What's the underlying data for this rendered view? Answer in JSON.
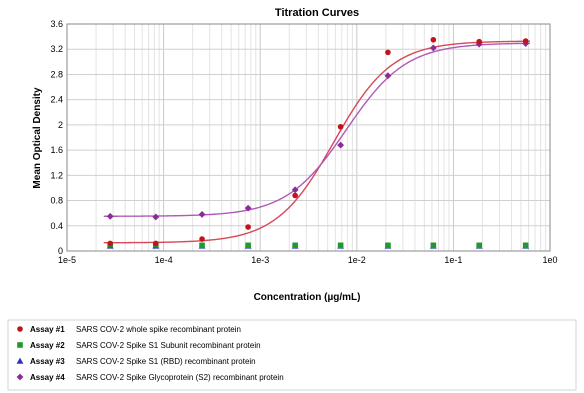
{
  "chart_data": {
    "type": "scatter",
    "title": "Titration Curves",
    "xlabel": "Concentration (µg/mL)",
    "ylabel": "Mean Optical Density",
    "x_scale": "log",
    "xlim": [
      1e-05,
      1
    ],
    "ylim": [
      0,
      3.6
    ],
    "x_ticks": [
      1e-05,
      0.0001,
      0.001,
      0.01,
      0.1,
      1
    ],
    "x_tick_labels": [
      "1e-5",
      "1e-4",
      "1e-3",
      "1e-2",
      "1e-1",
      "1e0"
    ],
    "y_ticks": [
      0,
      0.4,
      0.8,
      1.2,
      1.6,
      2,
      2.4,
      2.8,
      3.2,
      3.6
    ],
    "y_tick_labels": [
      "0",
      "0.4",
      "0.8",
      "1.2",
      "1.6",
      "2",
      "2.4",
      "2.8",
      "3.2",
      "3.6"
    ],
    "grid": true,
    "legend_position": "bottom",
    "x": [
      2.8e-05,
      8.3e-05,
      0.00025,
      0.00075,
      0.0023,
      0.0068,
      0.021,
      0.062,
      0.185,
      0.56
    ],
    "series": [
      {
        "name": "SARS COV-2 whole spike recombinant protein",
        "legend_label": "Assay #1",
        "color": "#c0141a",
        "line_color": "#d7485a",
        "marker": "circle",
        "values": [
          0.12,
          0.12,
          0.19,
          0.38,
          0.88,
          1.97,
          3.15,
          3.35,
          3.32,
          3.33
        ],
        "fit": {
          "bottom": 0.13,
          "top": 3.33,
          "ec50": 0.0058,
          "hill": 1.45
        }
      },
      {
        "name": "SARS COV-2 Spike S1 Subunit recombinant protein",
        "legend_label": "Assay #2",
        "color": "#1f9a2e",
        "marker": "square",
        "values": [
          0.1,
          0.1,
          0.09,
          0.09,
          0.09,
          0.09,
          0.09,
          0.09,
          0.09,
          0.09
        ]
      },
      {
        "name": "SARS COV-2 Spike S1 (RBD) recombinant protein",
        "legend_label": "Assay #3",
        "color": "#2b2fc4",
        "marker": "triangle",
        "values": [
          0.08,
          0.08,
          0.08,
          0.08,
          0.08,
          0.08,
          0.08,
          0.08,
          0.08,
          0.08
        ]
      },
      {
        "name": "SARS COV-2 Spike Glycoprotein (S2) recombinant protein",
        "legend_label": "Assay #4",
        "color": "#8b2c9a",
        "line_color": "#b05ab8",
        "marker": "diamond",
        "values": [
          0.55,
          0.54,
          0.58,
          0.68,
          0.97,
          1.68,
          2.78,
          3.22,
          3.28,
          3.29
        ],
        "fit": {
          "bottom": 0.55,
          "top": 3.3,
          "ec50": 0.0078,
          "hill": 1.4
        }
      }
    ]
  }
}
